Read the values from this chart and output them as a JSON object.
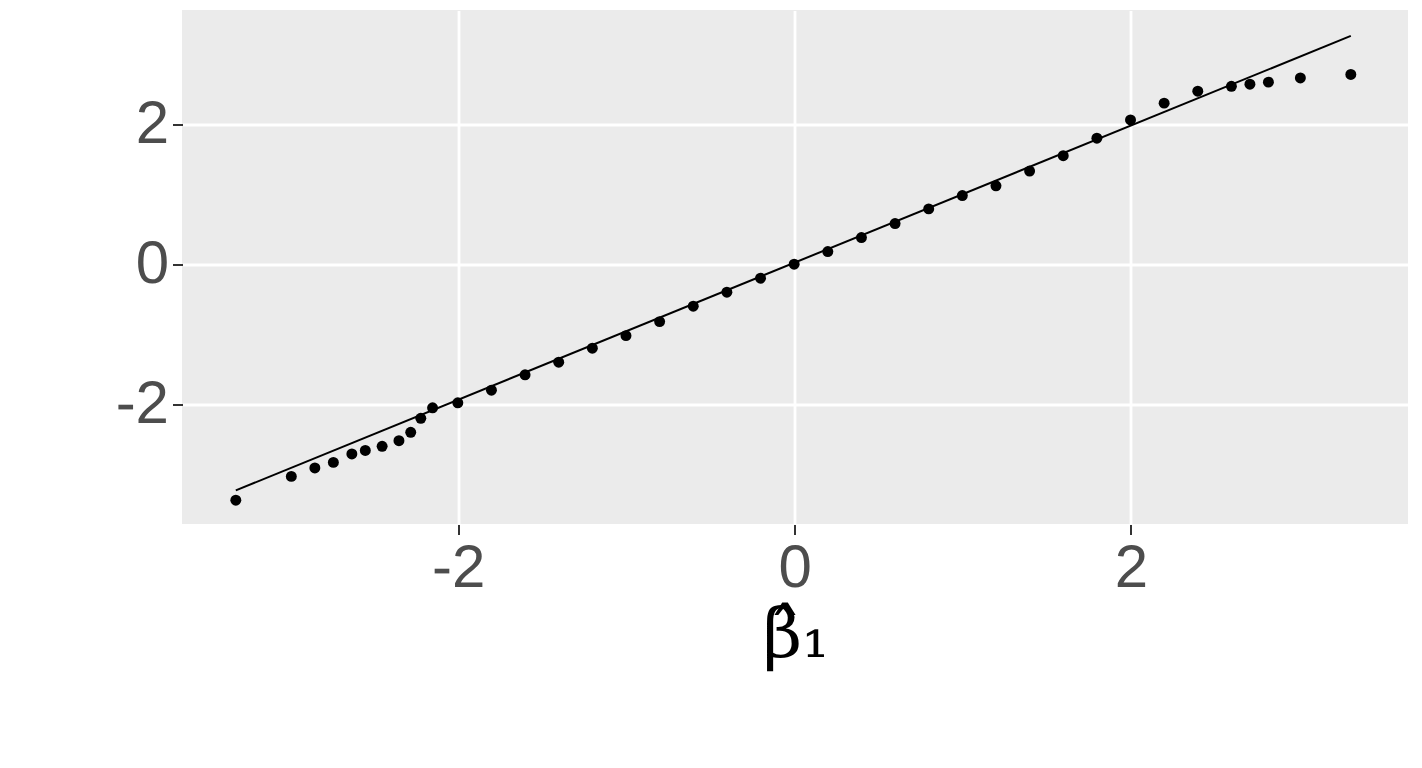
{
  "chart_data": {
    "type": "scatter",
    "xlabel": "β̂₁",
    "xlim": [
      -3.64,
      3.65
    ],
    "ylim": [
      -3.71,
      3.63
    ],
    "xticks": [
      -2,
      0,
      2
    ],
    "yticks": [
      -2,
      0,
      2
    ],
    "grid": true,
    "series": [
      {
        "marker": "circle",
        "color": "#000000",
        "x": [
          -3.32,
          -2.99,
          -2.85,
          -2.74,
          -2.63,
          -2.55,
          -2.45,
          -2.35,
          -2.28,
          -2.22,
          -2.15,
          -2.0,
          -1.8,
          -1.6,
          -1.4,
          -1.2,
          -1.0,
          -0.8,
          -0.6,
          -0.4,
          -0.2,
          0,
          0.2,
          0.4,
          0.6,
          0.8,
          1.0,
          1.2,
          1.4,
          1.6,
          1.8,
          2.0,
          2.2,
          2.4,
          2.6,
          2.71,
          2.82,
          3.01,
          3.31
        ],
        "values": [
          -3.37,
          -3.03,
          -2.91,
          -2.83,
          -2.71,
          -2.66,
          -2.6,
          -2.52,
          -2.4,
          -2.2,
          -2.05,
          -1.98,
          -1.8,
          -1.58,
          -1.4,
          -1.2,
          -1.02,
          -0.82,
          -0.6,
          -0.4,
          -0.2,
          0,
          0.18,
          0.38,
          0.58,
          0.79,
          0.98,
          1.12,
          1.33,
          1.55,
          1.8,
          2.06,
          2.3,
          2.47,
          2.54,
          2.57,
          2.6,
          2.66,
          2.71
        ]
      },
      {
        "type": "line",
        "line_style": "solid",
        "color": "#000000",
        "x": [
          -3.32,
          3.31
        ],
        "values": [
          -3.23,
          3.26
        ]
      }
    ]
  }
}
